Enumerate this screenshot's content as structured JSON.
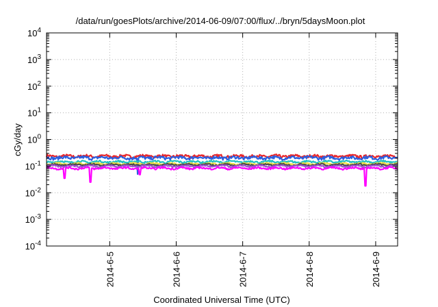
{
  "chart_data": {
    "type": "line",
    "title": "/data/run/goesPlots/archive/2014-06-09/07:00/flux/../bryn/5daysMoon.plot",
    "xlabel": "Coordinated Universal Time (UTC)",
    "ylabel": "cGy/day",
    "y_scale": "log",
    "ylim": [
      0.0001,
      10000
    ],
    "xlim": [
      4.05,
      9.33
    ],
    "y_ticks": [
      {
        "value": 0.0001,
        "base": "10",
        "exp": "-4"
      },
      {
        "value": 0.001,
        "base": "10",
        "exp": "-3"
      },
      {
        "value": 0.01,
        "base": "10",
        "exp": "-2"
      },
      {
        "value": 0.1,
        "base": "10",
        "exp": "-1"
      },
      {
        "value": 1,
        "base": "10",
        "exp": "0"
      },
      {
        "value": 10,
        "base": "10",
        "exp": "1"
      },
      {
        "value": 100,
        "base": "10",
        "exp": "2"
      },
      {
        "value": 1000,
        "base": "10",
        "exp": "3"
      },
      {
        "value": 10000,
        "base": "10",
        "exp": "4"
      }
    ],
    "x_ticks": [
      {
        "value": 5,
        "label": "2014-6-5"
      },
      {
        "value": 6,
        "label": "2014-6-6"
      },
      {
        "value": 7,
        "label": "2014-6-7"
      },
      {
        "value": 8,
        "label": "2014-6-8"
      },
      {
        "value": 9,
        "label": "2014-6-9"
      }
    ],
    "grid": true,
    "series": [
      {
        "color": "#e8262a",
        "level": 0.235,
        "noise": 0.12,
        "dips": []
      },
      {
        "color": "#2a5fe0",
        "level": 0.205,
        "noise": 0.13,
        "dips": [
          [
            5.42,
            0.05
          ]
        ]
      },
      {
        "color": "#22c0c0",
        "level": 0.145,
        "noise": 0.08,
        "dips": []
      },
      {
        "color": "#f0e040",
        "level": 0.122,
        "noise": 0.06,
        "dips": []
      },
      {
        "color": "#4a4a4a",
        "level": 0.112,
        "noise": 0.06,
        "dips": []
      },
      {
        "color": "#a050d0",
        "level": 0.1,
        "noise": 0.06,
        "dips": []
      },
      {
        "color": "#ff00ff",
        "level": 0.083,
        "noise": 0.07,
        "dips": [
          [
            4.32,
            0.035
          ],
          [
            4.71,
            0.025
          ],
          [
            5.45,
            0.048
          ],
          [
            8.85,
            0.018
          ]
        ]
      }
    ]
  }
}
